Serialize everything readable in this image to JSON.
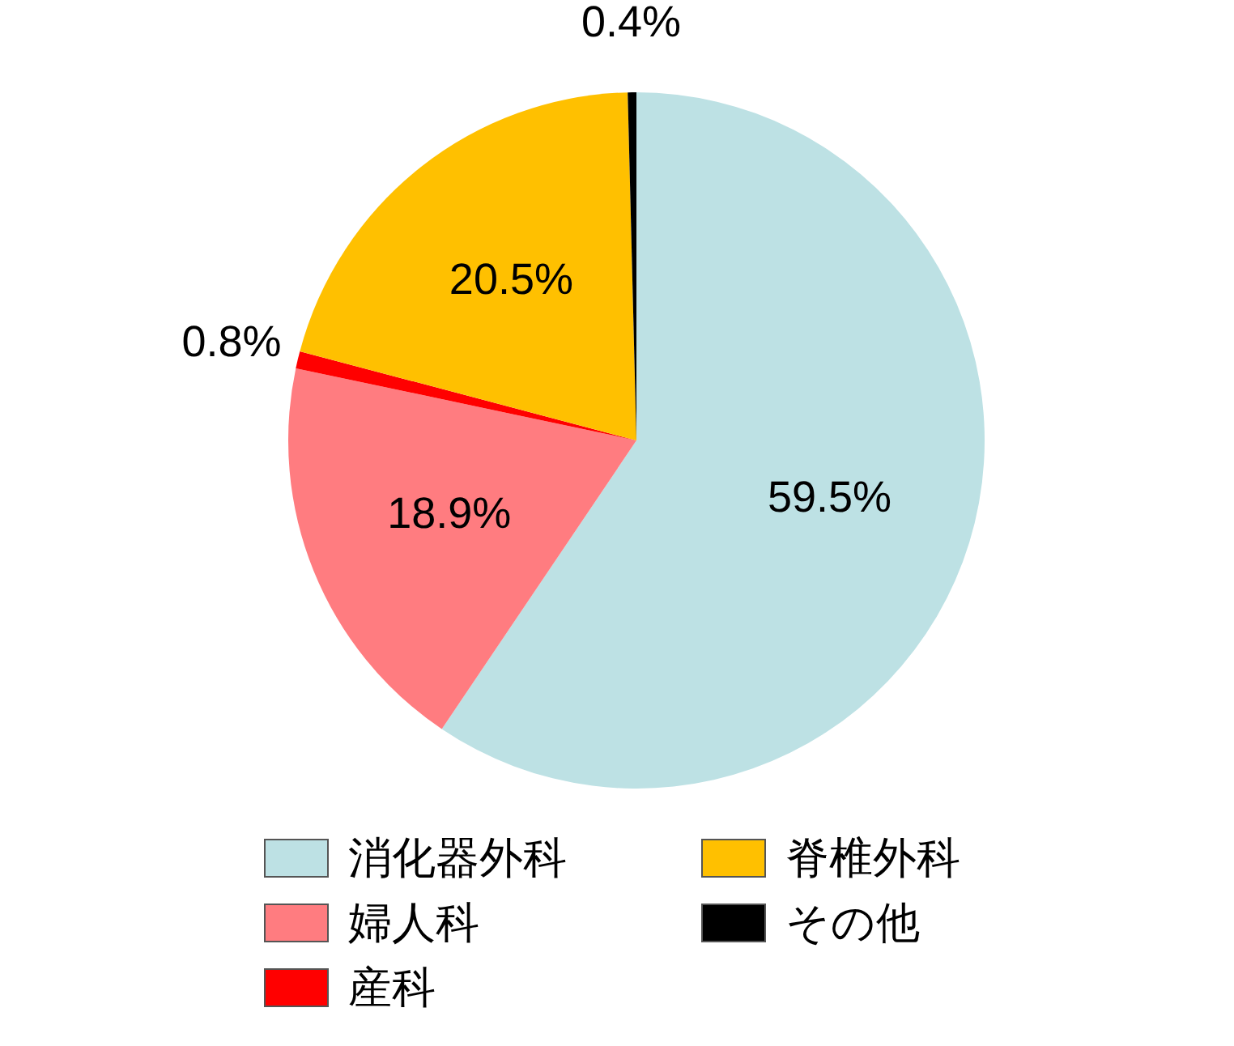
{
  "chart_data": {
    "type": "pie",
    "categories": [
      "消化器外科",
      "婦人科",
      "産科",
      "脊椎外科",
      "その他"
    ],
    "values": [
      59.5,
      18.9,
      0.8,
      20.5,
      0.4
    ],
    "colors": [
      "#bde1e4",
      "#ff7c80",
      "#ff0000",
      "#ffc000",
      "#000000"
    ],
    "value_labels": [
      "59.5%",
      "18.9%",
      "0.8%",
      "20.5%",
      "0.4%"
    ],
    "legend": "bottom"
  }
}
